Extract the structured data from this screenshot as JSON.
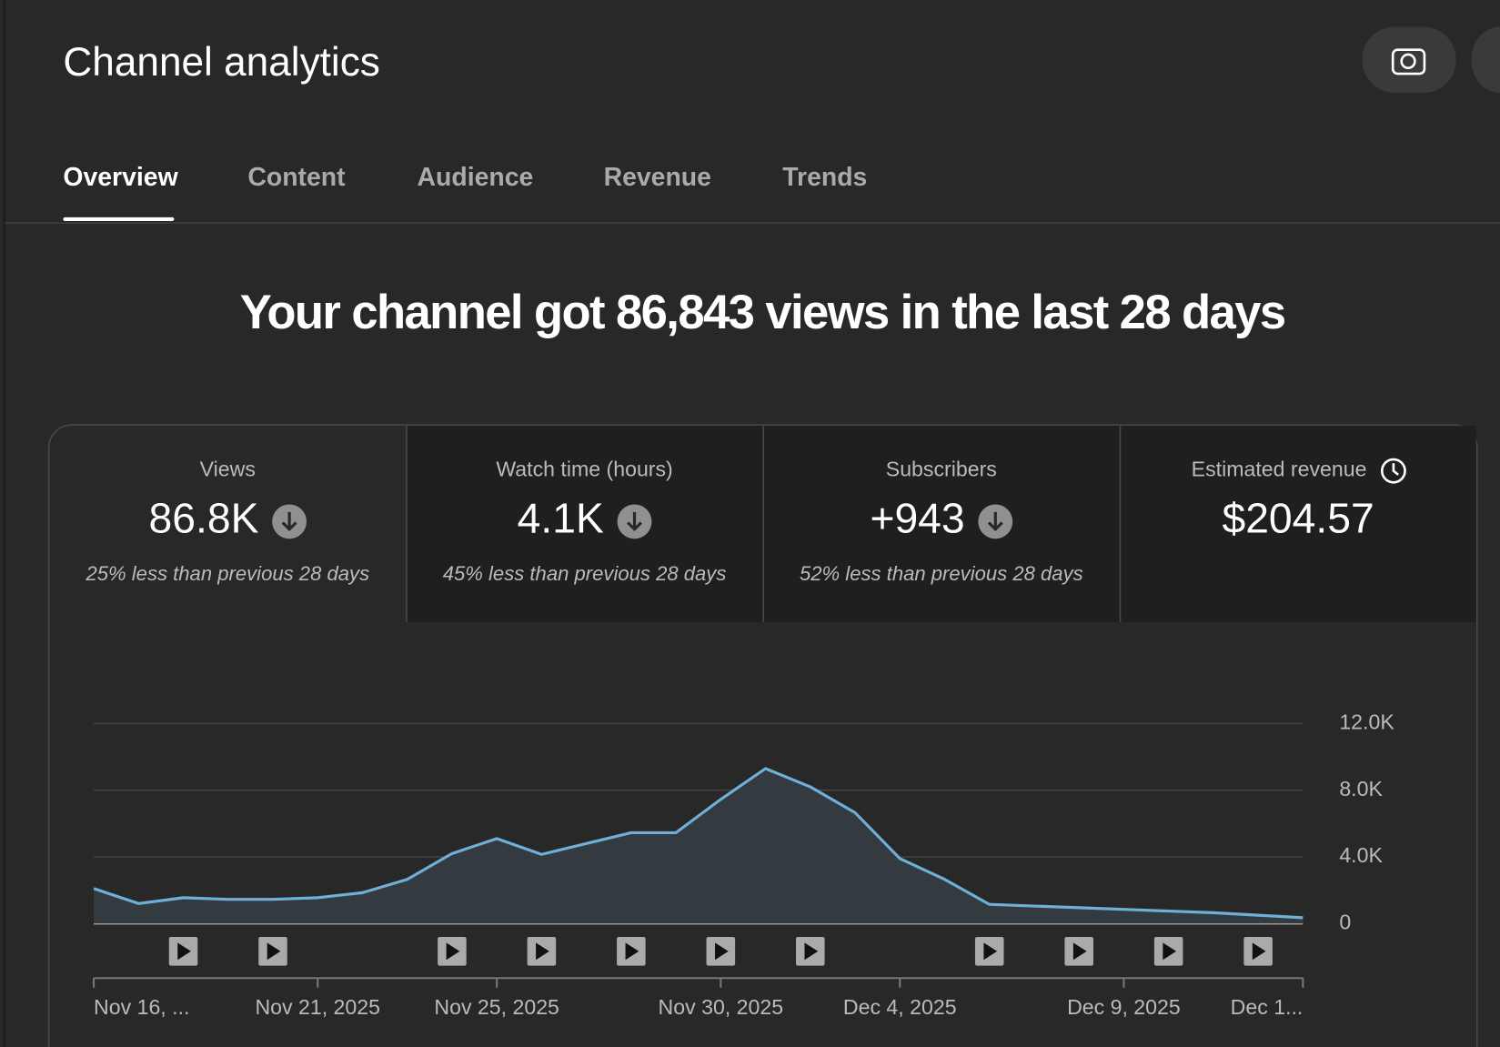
{
  "header": {
    "title": "Channel analytics"
  },
  "tabs": [
    "Overview",
    "Content",
    "Audience",
    "Revenue",
    "Trends"
  ],
  "headline": "Your channel got 86,843 views in the last 28 days",
  "metrics": [
    {
      "label": "Views",
      "value": "86.8K",
      "comparison": "25% less than previous 28 days"
    },
    {
      "label": "Watch time (hours)",
      "value": "4.1K",
      "comparison": "45% less than previous 28 days"
    },
    {
      "label": "Subscribers",
      "value": "+943",
      "comparison": "52% less than previous 28 days"
    },
    {
      "label": "Estimated revenue",
      "value": "$204.57"
    }
  ],
  "chart_data": {
    "type": "line",
    "x": [
      "Nov 16, ...",
      null,
      null,
      null,
      null,
      "Nov 21, 2025",
      null,
      null,
      null,
      "Nov 25, 2025",
      null,
      null,
      null,
      null,
      "Nov 30, 2025",
      null,
      null,
      null,
      "Dec 4, 2025",
      null,
      null,
      null,
      null,
      "Dec 9, 2025",
      null,
      null,
      null,
      "Dec 1..."
    ],
    "values": [
      2100,
      1200,
      1550,
      1450,
      1450,
      1550,
      1850,
      2650,
      4200,
      5100,
      4150,
      4800,
      5450,
      5450,
      7450,
      9300,
      8200,
      6650,
      3900,
      2650,
      1150,
      1050,
      950,
      850,
      750,
      650,
      500,
      350
    ],
    "color": "#6fb0d8",
    "ylim": [
      0,
      12000
    ],
    "yticks": [
      0,
      {
        "value": 4000,
        "label": "4.0K"
      },
      {
        "value": 8000,
        "label": "8.0K"
      },
      {
        "value": 12000,
        "label": "12.0K"
      }
    ],
    "grid": true
  }
}
